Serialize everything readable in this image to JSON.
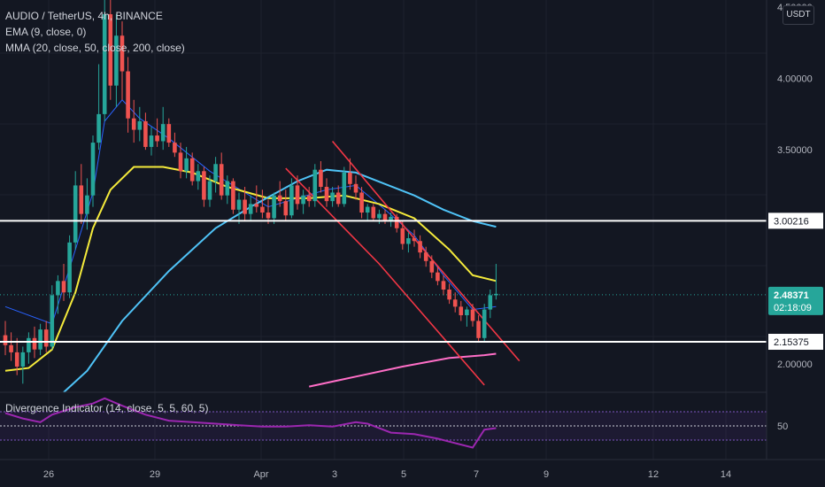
{
  "legend": {
    "symbol_line": "AUDIO / TetherUS, 4h, BINANCE",
    "ema_line": "EMA (9, close, 0)",
    "mma_line": "MMA (20, close, 50, close, 200, close)"
  },
  "currency_button": "USDT",
  "indicator_legend": "Divergence Indicator (14, close, 5, 5, 60, 5)",
  "colors": {
    "background": "#131722",
    "grid": "#1e222d",
    "up": "#26a69a",
    "down": "#ef5350",
    "ema9": "#2962ff",
    "ma20": "#f5eb3b",
    "ma50": "#4fc3f7",
    "ma200": "#ff6ec7",
    "divergence": "#9c27b0",
    "channel": "#f23645",
    "levels": "#ffffff"
  },
  "chart_data": {
    "type": "candlestick",
    "title": "AUDIO / TetherUS, 4h, BINANCE",
    "ylabel": "USDT",
    "ylim": [
      1.8,
      4.55
    ],
    "price_ticks": [
      "4.50000",
      "4.00000",
      "3.50000",
      "2.00000"
    ],
    "x_ticks": [
      "26",
      "29",
      "Apr",
      "3",
      "5",
      "7",
      "9",
      "12",
      "14"
    ],
    "horizontal_levels": [
      {
        "value": 3.00216,
        "label": "3.00216"
      },
      {
        "value": 2.15375,
        "label": "2.15375"
      }
    ],
    "current_price": {
      "value": 2.48371,
      "label": "2.48371",
      "countdown": "02:18:09"
    },
    "candles": [
      [
        2.2,
        2.3,
        2.06,
        2.13
      ],
      [
        2.13,
        2.22,
        2.02,
        2.08
      ],
      [
        2.08,
        2.18,
        1.92,
        1.98
      ],
      [
        1.98,
        2.12,
        1.86,
        2.08
      ],
      [
        2.08,
        2.22,
        2.0,
        2.18
      ],
      [
        2.18,
        2.26,
        2.04,
        2.1
      ],
      [
        2.1,
        2.28,
        2.06,
        2.24
      ],
      [
        2.24,
        2.3,
        2.08,
        2.12
      ],
      [
        2.12,
        2.55,
        2.1,
        2.48
      ],
      [
        2.48,
        2.62,
        2.35,
        2.58
      ],
      [
        2.58,
        2.7,
        2.44,
        2.5
      ],
      [
        2.5,
        2.9,
        2.46,
        2.85
      ],
      [
        2.85,
        3.35,
        2.8,
        3.25
      ],
      [
        3.25,
        3.4,
        2.98,
        3.05
      ],
      [
        3.05,
        3.3,
        2.94,
        3.18
      ],
      [
        3.18,
        3.6,
        3.1,
        3.55
      ],
      [
        3.55,
        4.1,
        3.5,
        3.75
      ],
      [
        3.75,
        4.62,
        3.7,
        4.45
      ],
      [
        4.45,
        4.55,
        3.85,
        3.95
      ],
      [
        3.95,
        4.45,
        3.8,
        4.3
      ],
      [
        4.3,
        4.4,
        3.85,
        4.05
      ],
      [
        4.05,
        4.15,
        3.62,
        3.72
      ],
      [
        3.72,
        3.85,
        3.55,
        3.64
      ],
      [
        3.64,
        3.8,
        3.56,
        3.7
      ],
      [
        3.7,
        3.76,
        3.5,
        3.52
      ],
      [
        3.52,
        3.66,
        3.46,
        3.6
      ],
      [
        3.6,
        3.72,
        3.52,
        3.56
      ],
      [
        3.56,
        3.8,
        3.5,
        3.68
      ],
      [
        3.68,
        3.72,
        3.52,
        3.55
      ],
      [
        3.55,
        3.62,
        3.45,
        3.48
      ],
      [
        3.48,
        3.55,
        3.3,
        3.35
      ],
      [
        3.35,
        3.52,
        3.3,
        3.44
      ],
      [
        3.44,
        3.48,
        3.25,
        3.28
      ],
      [
        3.28,
        3.4,
        3.22,
        3.35
      ],
      [
        3.35,
        3.38,
        3.1,
        3.15
      ],
      [
        3.15,
        3.32,
        3.1,
        3.28
      ],
      [
        3.28,
        3.45,
        3.2,
        3.4
      ],
      [
        3.4,
        3.48,
        3.15,
        3.18
      ],
      [
        3.18,
        3.32,
        3.12,
        3.28
      ],
      [
        3.28,
        3.3,
        3.05,
        3.08
      ],
      [
        3.08,
        3.2,
        2.98,
        3.15
      ],
      [
        3.15,
        3.24,
        3.0,
        3.05
      ],
      [
        3.05,
        3.18,
        3.0,
        3.12
      ],
      [
        3.12,
        3.25,
        3.06,
        3.1
      ],
      [
        3.1,
        3.22,
        3.02,
        3.06
      ],
      [
        3.06,
        3.15,
        2.98,
        3.02
      ],
      [
        3.02,
        3.2,
        2.98,
        3.18
      ],
      [
        3.18,
        3.28,
        3.1,
        3.14
      ],
      [
        3.14,
        3.22,
        3.0,
        3.04
      ],
      [
        3.04,
        3.3,
        3.02,
        3.25
      ],
      [
        3.25,
        3.32,
        3.08,
        3.12
      ],
      [
        3.12,
        3.22,
        3.05,
        3.18
      ],
      [
        3.18,
        3.24,
        3.1,
        3.14
      ],
      [
        3.14,
        3.4,
        3.1,
        3.36
      ],
      [
        3.36,
        3.42,
        3.2,
        3.24
      ],
      [
        3.24,
        3.3,
        3.1,
        3.14
      ],
      [
        3.14,
        3.24,
        3.1,
        3.2
      ],
      [
        3.2,
        3.25,
        3.1,
        3.12
      ],
      [
        3.12,
        3.38,
        3.1,
        3.34
      ],
      [
        3.34,
        3.44,
        3.22,
        3.26
      ],
      [
        3.26,
        3.32,
        3.15,
        3.2
      ],
      [
        3.2,
        3.24,
        3.02,
        3.06
      ],
      [
        3.06,
        3.12,
        3.0,
        3.1
      ],
      [
        3.1,
        3.12,
        3.0,
        3.02
      ],
      [
        3.02,
        3.08,
        2.98,
        3.05
      ],
      [
        3.05,
        3.08,
        2.98,
        3.0
      ],
      [
        3.0,
        3.06,
        2.96,
        3.03
      ],
      [
        3.03,
        3.05,
        2.92,
        2.95
      ],
      [
        2.95,
        3.0,
        2.8,
        2.84
      ],
      [
        2.84,
        2.92,
        2.78,
        2.88
      ],
      [
        2.88,
        2.94,
        2.82,
        2.86
      ],
      [
        2.86,
        2.9,
        2.74,
        2.78
      ],
      [
        2.78,
        2.82,
        2.68,
        2.72
      ],
      [
        2.72,
        2.76,
        2.6,
        2.64
      ],
      [
        2.64,
        2.68,
        2.55,
        2.58
      ],
      [
        2.58,
        2.62,
        2.48,
        2.52
      ],
      [
        2.52,
        2.56,
        2.42,
        2.45
      ],
      [
        2.45,
        2.5,
        2.36,
        2.4
      ],
      [
        2.4,
        2.44,
        2.3,
        2.34
      ],
      [
        2.34,
        2.4,
        2.26,
        2.38
      ],
      [
        2.38,
        2.42,
        2.26,
        2.3
      ],
      [
        2.3,
        2.34,
        2.15,
        2.18
      ],
      [
        2.18,
        2.42,
        2.16,
        2.38
      ],
      [
        2.38,
        2.52,
        2.32,
        2.48
      ],
      [
        2.48,
        2.7,
        2.45,
        2.49
      ]
    ],
    "series": [
      {
        "name": "EMA 9",
        "values": [
          [
            0,
            2.4
          ],
          [
            8,
            2.28
          ],
          [
            12,
            2.8
          ],
          [
            15,
            3.2
          ],
          [
            17,
            3.7
          ],
          [
            20,
            3.85
          ],
          [
            23,
            3.72
          ],
          [
            28,
            3.58
          ],
          [
            35,
            3.35
          ],
          [
            45,
            3.1
          ],
          [
            55,
            3.22
          ],
          [
            60,
            3.25
          ],
          [
            65,
            3.08
          ],
          [
            70,
            2.9
          ],
          [
            75,
            2.62
          ],
          [
            80,
            2.38
          ],
          [
            84,
            2.4
          ]
        ]
      },
      {
        "name": "MA 20",
        "values": [
          [
            0,
            1.95
          ],
          [
            4,
            1.97
          ],
          [
            8,
            2.1
          ],
          [
            12,
            2.5
          ],
          [
            15,
            2.95
          ],
          [
            18,
            3.22
          ],
          [
            22,
            3.38
          ],
          [
            27,
            3.38
          ],
          [
            32,
            3.34
          ],
          [
            38,
            3.24
          ],
          [
            45,
            3.16
          ],
          [
            52,
            3.16
          ],
          [
            58,
            3.18
          ],
          [
            64,
            3.12
          ],
          [
            70,
            3.02
          ],
          [
            76,
            2.8
          ],
          [
            80,
            2.62
          ],
          [
            84,
            2.58
          ]
        ]
      },
      {
        "name": "MA 50",
        "values": [
          [
            10,
            1.8
          ],
          [
            14,
            1.95
          ],
          [
            20,
            2.3
          ],
          [
            28,
            2.65
          ],
          [
            36,
            2.95
          ],
          [
            42,
            3.1
          ],
          [
            50,
            3.28
          ],
          [
            55,
            3.36
          ],
          [
            60,
            3.34
          ],
          [
            65,
            3.26
          ],
          [
            70,
            3.18
          ],
          [
            75,
            3.08
          ],
          [
            80,
            3.0
          ],
          [
            84,
            2.96
          ]
        ]
      },
      {
        "name": "MA 200",
        "values": [
          [
            52,
            1.84
          ],
          [
            60,
            1.91
          ],
          [
            68,
            1.98
          ],
          [
            76,
            2.04
          ],
          [
            82,
            2.06
          ],
          [
            84,
            2.07
          ]
        ]
      }
    ],
    "divergence": {
      "label": "Divergence Indicator (14, close, 5, 5, 60, 5)",
      "level_tick": "50",
      "values": [
        [
          0,
          72
        ],
        [
          3,
          65
        ],
        [
          6,
          60
        ],
        [
          8,
          70
        ],
        [
          12,
          80
        ],
        [
          15,
          85
        ],
        [
          17,
          92
        ],
        [
          20,
          82
        ],
        [
          24,
          70
        ],
        [
          28,
          62
        ],
        [
          32,
          60
        ],
        [
          36,
          58
        ],
        [
          40,
          56
        ],
        [
          44,
          54
        ],
        [
          48,
          54
        ],
        [
          52,
          56
        ],
        [
          56,
          54
        ],
        [
          60,
          60
        ],
        [
          62,
          58
        ],
        [
          66,
          46
        ],
        [
          70,
          44
        ],
        [
          74,
          38
        ],
        [
          78,
          30
        ],
        [
          80,
          26
        ],
        [
          82,
          50
        ],
        [
          84,
          52
        ]
      ]
    },
    "channel": {
      "upper": [
        [
          56,
          3.56
        ],
        [
          72,
          2.78
        ],
        [
          88,
          2.02
        ]
      ],
      "lower": [
        [
          48,
          3.37
        ],
        [
          64,
          2.7
        ],
        [
          82,
          1.85
        ]
      ]
    }
  }
}
